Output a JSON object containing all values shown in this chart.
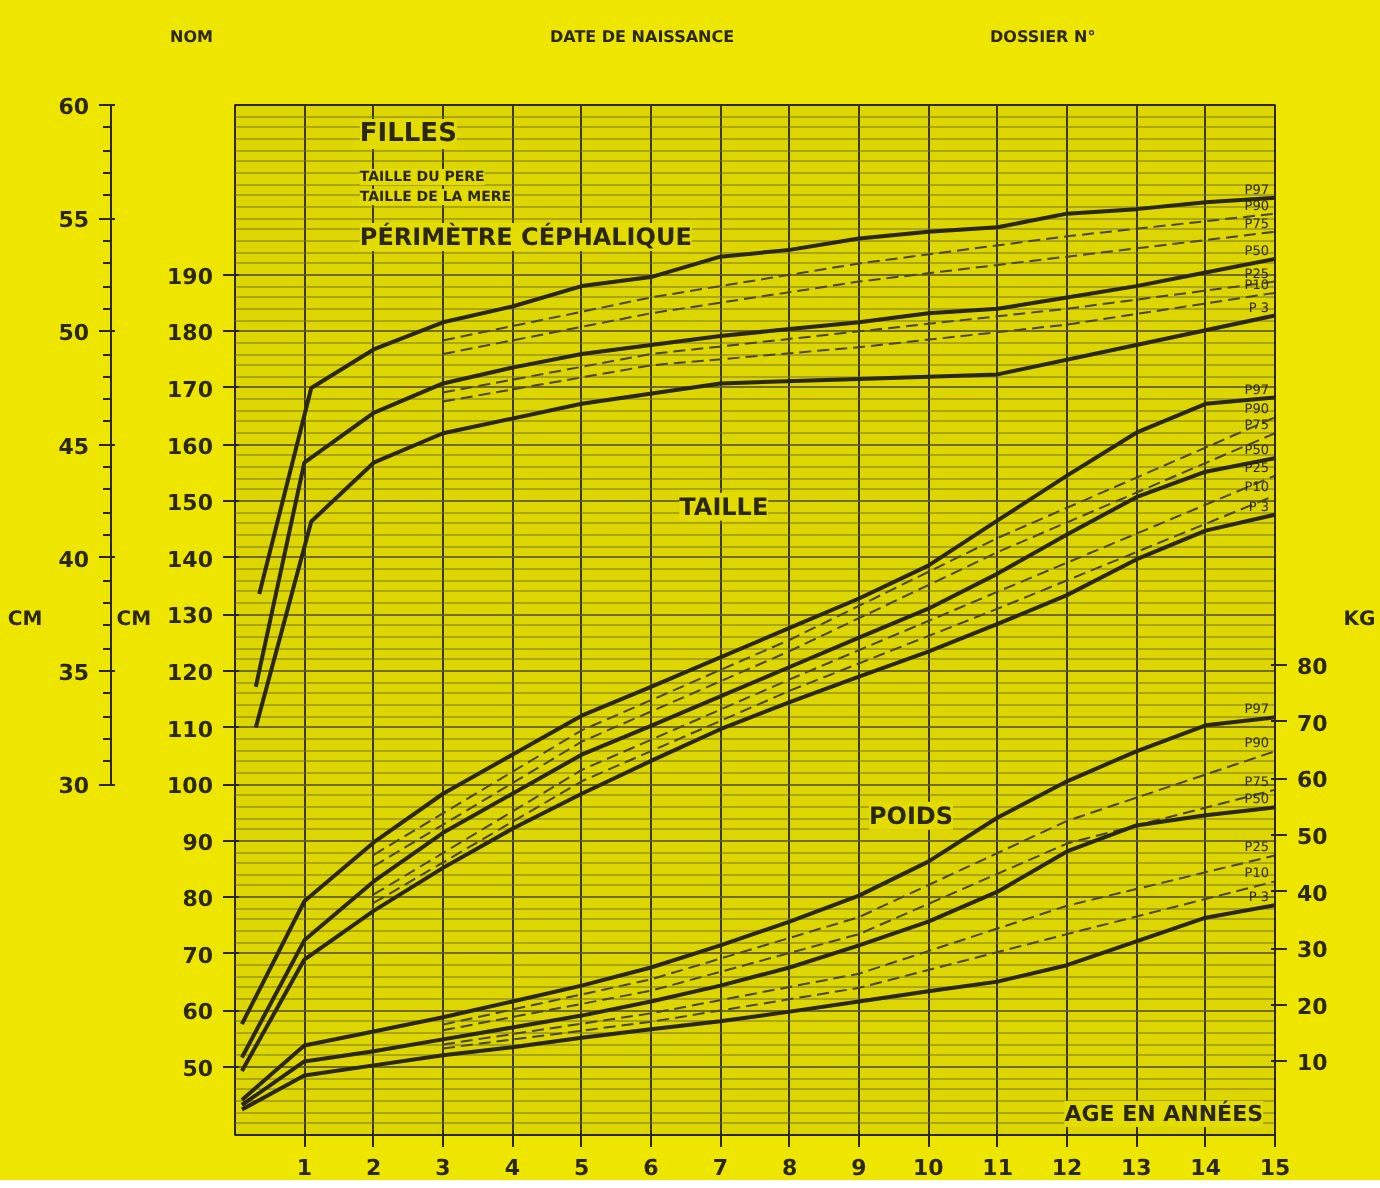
{
  "chart_data": {
    "type": "line",
    "title": "FILLES",
    "xlabel": "AGE EN ANNÉES",
    "ylabel": "CM",
    "y2label": "CM",
    "y3label": "KG",
    "xlim": [
      0,
      15
    ],
    "xticks": [
      1,
      2,
      3,
      4,
      5,
      6,
      7,
      8,
      9,
      10,
      11,
      12,
      13,
      14,
      15
    ],
    "ylim": [
      38,
      220
    ],
    "yticks": [
      50,
      60,
      70,
      80,
      90,
      100,
      110,
      120,
      130,
      140,
      150,
      160,
      170,
      180,
      190
    ],
    "y2lim": [
      14.5,
      60
    ],
    "y2ticks": [
      30,
      35,
      40,
      45,
      50,
      55,
      60
    ],
    "y3lim": [
      -3,
      179
    ],
    "y3ticks": [
      10,
      20,
      30,
      40,
      50,
      60,
      70,
      80
    ],
    "grid": true,
    "legend": false,
    "annotations": [
      "NOM",
      "DATE DE NAISSANCE",
      "DOSSIER N°",
      "TAILLE DU PERE",
      "TAILLE DE LA MERE",
      "PÉRIMÈTRE CÉPHALIQUE",
      "TAILLE",
      "POIDS"
    ],
    "series": [
      {
        "name": "P97",
        "color": "#2a2810",
        "axis": "y2",
        "line_style": "solid",
        "x": [
          0.35,
          1.1,
          2,
          3,
          4,
          5,
          6,
          7,
          8,
          9,
          10,
          11,
          12,
          13,
          14,
          15
        ],
        "values": [
          38.4,
          47.5,
          49.2,
          50.4,
          51.1,
          52.0,
          52.4,
          53.3,
          53.6,
          54.1,
          54.4,
          54.6,
          55.2,
          55.4,
          55.7,
          55.9
        ]
      },
      {
        "name": "P90",
        "color": "#4a4620",
        "axis": "y2",
        "line_style": "dashed",
        "x": [
          3,
          6,
          9,
          12,
          15
        ],
        "values": [
          49.6,
          51.5,
          53.0,
          54.2,
          55.2
        ]
      },
      {
        "name": "P75",
        "color": "#4a4620",
        "axis": "y2",
        "line_style": "dashed",
        "x": [
          3,
          6,
          9,
          12,
          15
        ],
        "values": [
          49.0,
          50.8,
          52.2,
          53.3,
          54.4
        ]
      },
      {
        "name": "P50",
        "color": "#2a2810",
        "axis": "y2",
        "line_style": "solid",
        "x": [
          0.3,
          1,
          2,
          3,
          4,
          5,
          6,
          7,
          8,
          9,
          10,
          11,
          12,
          13,
          14,
          15
        ],
        "values": [
          34.3,
          44.2,
          46.4,
          47.7,
          48.4,
          49.0,
          49.4,
          49.8,
          50.1,
          50.4,
          50.8,
          51.0,
          51.5,
          52.0,
          52.6,
          53.2
        ]
      },
      {
        "name": "P25",
        "color": "#4a4620",
        "axis": "y2",
        "line_style": "dashed",
        "x": [
          3,
          6,
          9,
          12,
          15
        ],
        "values": [
          47.3,
          49.0,
          50.0,
          51.0,
          52.2
        ]
      },
      {
        "name": "P10",
        "color": "#4a4620",
        "axis": "y2",
        "line_style": "dashed",
        "x": [
          3,
          6,
          9,
          12,
          15
        ],
        "values": [
          46.9,
          48.5,
          49.3,
          50.3,
          51.7
        ]
      },
      {
        "name": "P 3",
        "color": "#2a2810",
        "axis": "y2",
        "line_style": "solid",
        "x": [
          0.3,
          1.1,
          2,
          3,
          5,
          7,
          9,
          11,
          13,
          15
        ],
        "values": [
          32.5,
          41.6,
          44.2,
          45.5,
          46.8,
          47.7,
          47.9,
          48.1,
          49.4,
          50.7
        ]
      },
      {
        "name": "P97",
        "color": "#2a2810",
        "line_style": "solid",
        "x": [
          0.1,
          1,
          2,
          3,
          4,
          5,
          6,
          7,
          8,
          9,
          10,
          11,
          12,
          13,
          14,
          15
        ],
        "values": [
          57.6,
          79.3,
          89.7,
          98.3,
          105.2,
          112.1,
          117.2,
          122.4,
          127.6,
          132.8,
          138.6,
          146.6,
          154.5,
          162.1,
          167.2,
          168.3
        ]
      },
      {
        "name": "P90",
        "color": "#4a4620",
        "line_style": "dashed",
        "x": [
          2,
          5,
          8,
          11,
          15
        ],
        "values": [
          87.5,
          109.5,
          125.5,
          143.5,
          164.8
        ]
      },
      {
        "name": "P75",
        "color": "#4a4620",
        "line_style": "dashed",
        "x": [
          2,
          5,
          8,
          11,
          15
        ],
        "values": [
          85.5,
          107.5,
          123.5,
          141,
          162
        ]
      },
      {
        "name": "P50",
        "color": "#2a2810",
        "line_style": "solid",
        "x": [
          0.1,
          1,
          2,
          3,
          4,
          5,
          6,
          7,
          8,
          9,
          10,
          11,
          12,
          13,
          14,
          15
        ],
        "values": [
          51.7,
          72.4,
          82.8,
          91.4,
          98.3,
          105.2,
          110.3,
          115.5,
          120.7,
          125.9,
          131.0,
          137.2,
          144.1,
          150.7,
          155.2,
          157.6
        ]
      },
      {
        "name": "P25",
        "color": "#4a4620",
        "line_style": "dashed",
        "x": [
          2,
          5,
          8,
          11,
          15
        ],
        "values": [
          80.5,
          102.5,
          118.5,
          134,
          154.5
        ]
      },
      {
        "name": "P10",
        "color": "#4a4620",
        "line_style": "dashed",
        "x": [
          2,
          5,
          8,
          11,
          15
        ],
        "values": [
          79,
          100.5,
          116.5,
          131,
          151
        ]
      },
      {
        "name": "P 3",
        "color": "#2a2810",
        "line_style": "solid",
        "x": [
          0.1,
          1,
          2,
          3,
          4,
          5,
          6,
          7,
          8,
          9,
          10,
          11,
          12,
          13,
          14,
          15
        ],
        "values": [
          49.3,
          69.0,
          77.6,
          85.2,
          92.1,
          98.3,
          104.1,
          109.7,
          114.5,
          119.0,
          123.4,
          128.3,
          133.4,
          139.7,
          144.8,
          147.6
        ]
      },
      {
        "name": "P97",
        "color": "#2a2810",
        "axis": "y3",
        "line_style": "solid",
        "x": [
          0.1,
          1,
          2,
          3,
          4,
          5,
          6,
          7,
          8,
          9,
          10,
          11,
          12,
          13,
          14,
          15
        ],
        "values": [
          3.2,
          12.8,
          15.3,
          17.8,
          20.6,
          23.4,
          26.6,
          30.5,
          34.7,
          39.3,
          45.3,
          53.1,
          59.5,
          64.8,
          69.4,
          70.8
        ]
      },
      {
        "name": "P90",
        "color": "#4a4620",
        "axis": "y3",
        "line_style": "dashed",
        "x": [
          3,
          6,
          9,
          12,
          15
        ],
        "values": [
          16.5,
          24.5,
          35.5,
          52.5,
          64.8
        ]
      },
      {
        "name": "P75",
        "color": "#4a4620",
        "axis": "y3",
        "line_style": "dashed",
        "x": [
          3,
          6,
          9,
          12,
          15
        ],
        "values": [
          15.5,
          22.5,
          32.5,
          48.5,
          58.0
        ]
      },
      {
        "name": "P50",
        "color": "#2a2810",
        "axis": "y3",
        "line_style": "solid",
        "x": [
          0.1,
          1,
          2,
          3,
          4,
          5,
          6,
          7,
          8,
          9,
          10,
          11,
          12,
          13,
          14,
          15
        ],
        "values": [
          2.3,
          10.0,
          11.8,
          13.9,
          16.0,
          18.1,
          20.6,
          23.4,
          26.6,
          30.5,
          34.7,
          40.0,
          47.1,
          51.7,
          53.5,
          54.9
        ]
      },
      {
        "name": "P25",
        "color": "#4a4620",
        "axis": "y3",
        "line_style": "dashed",
        "x": [
          3,
          6,
          9,
          12,
          15
        ],
        "values": [
          13,
          18.5,
          25.5,
          37.5,
          46.4
        ]
      },
      {
        "name": "P10",
        "color": "#4a4620",
        "axis": "y3",
        "line_style": "dashed",
        "x": [
          3,
          6,
          9,
          12,
          15
        ],
        "values": [
          12.3,
          17.0,
          23.0,
          32.5,
          41.8
        ]
      },
      {
        "name": "P 3",
        "color": "#2a2810",
        "axis": "y3",
        "line_style": "solid",
        "x": [
          0.1,
          1,
          2,
          3,
          4,
          5,
          6,
          7,
          8,
          9,
          10,
          11,
          12,
          13,
          14,
          15
        ],
        "values": [
          1.5,
          7.5,
          9.3,
          11.1,
          12.5,
          14.2,
          15.7,
          17.1,
          18.8,
          20.6,
          22.4,
          24.1,
          27.0,
          31.2,
          35.4,
          37.6
        ]
      }
    ]
  }
}
